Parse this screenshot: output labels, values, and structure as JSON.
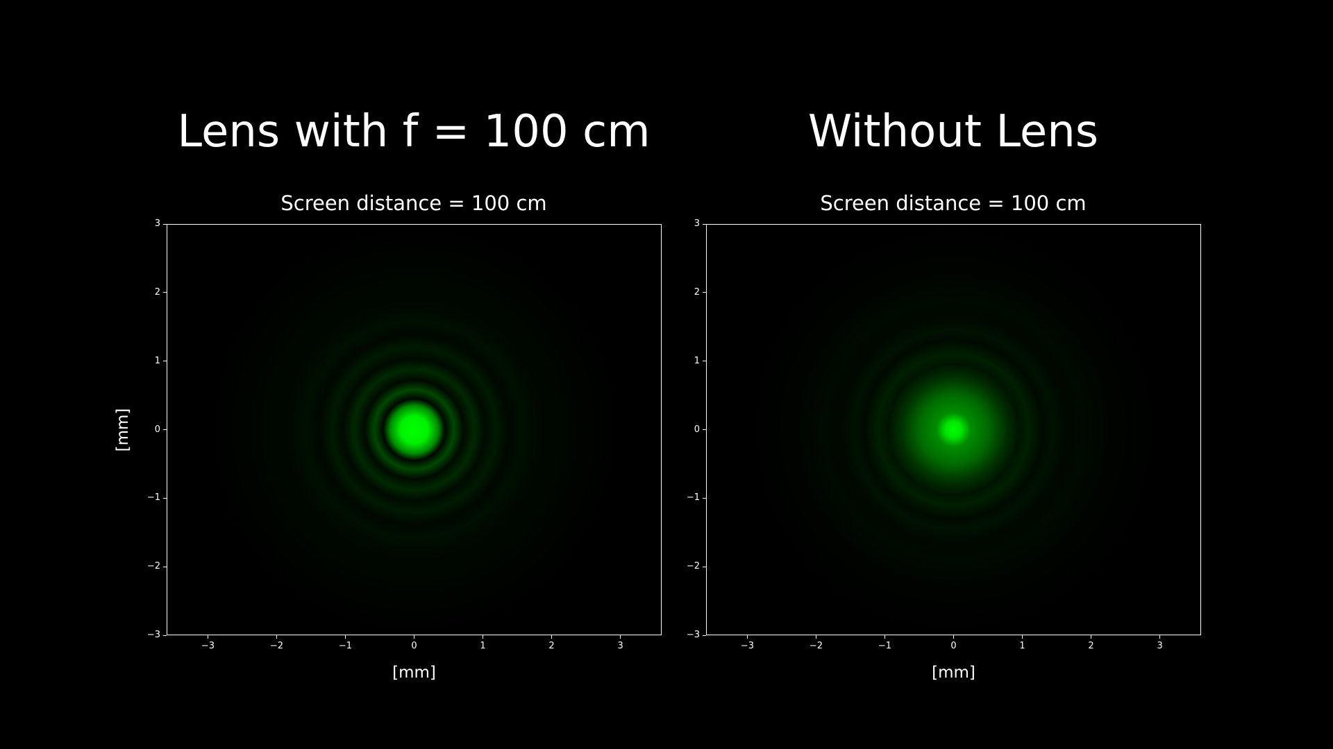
{
  "chart_data": [
    {
      "type": "heatmap",
      "suptitle": "Lens with f = 100 cm",
      "title": "Screen distance = 100 cm",
      "xlabel": "[mm]",
      "ylabel": "[mm]",
      "xlim": [
        -3.6,
        3.6
      ],
      "ylim": [
        -3,
        3
      ],
      "xticks": [
        -3,
        -2,
        -1,
        0,
        1,
        2,
        3
      ],
      "yticks": [
        -3,
        -2,
        -1,
        0,
        1,
        2,
        3
      ],
      "xtick_labels": [
        "−3",
        "−2",
        "−1",
        "0",
        "1",
        "2",
        "3"
      ],
      "ytick_labels": [
        "−3",
        "−2",
        "−1",
        "0",
        "1",
        "2",
        "3"
      ],
      "colormap": "black-to-green",
      "color": "#00ff00",
      "pattern": "concentric diffraction rings (Airy-like)",
      "rings": [
        {
          "radius_mm": 0.0,
          "intensity": 1.0
        },
        {
          "radius_mm": 0.2,
          "intensity": 0.95
        },
        {
          "radius_mm": 0.35,
          "intensity": 0.55
        },
        {
          "radius_mm": 0.45,
          "intensity": 0.03
        },
        {
          "radius_mm": 0.58,
          "intensity": 0.28
        },
        {
          "radius_mm": 0.72,
          "intensity": 0.04
        },
        {
          "radius_mm": 0.88,
          "intensity": 0.16
        },
        {
          "radius_mm": 1.03,
          "intensity": 0.04
        },
        {
          "radius_mm": 1.2,
          "intensity": 0.1
        },
        {
          "radius_mm": 1.38,
          "intensity": 0.03
        },
        {
          "radius_mm": 1.58,
          "intensity": 0.06
        },
        {
          "radius_mm": 1.85,
          "intensity": 0.03
        },
        {
          "radius_mm": 2.3,
          "intensity": 0.02
        },
        {
          "radius_mm": 3.0,
          "intensity": 0.0
        }
      ]
    },
    {
      "type": "heatmap",
      "suptitle": "Without Lens",
      "title": "Screen distance = 100 cm",
      "xlabel": "[mm]",
      "ylabel": "",
      "xlim": [
        -3.6,
        3.6
      ],
      "ylim": [
        -3,
        3
      ],
      "xticks": [
        -3,
        -2,
        -1,
        0,
        1,
        2,
        3
      ],
      "yticks": [
        -3,
        -2,
        -1,
        0,
        1,
        2,
        3
      ],
      "xtick_labels": [
        "−3",
        "−2",
        "−1",
        "0",
        "1",
        "2",
        "3"
      ],
      "ytick_labels": [
        "−3",
        "−2",
        "−1",
        "0",
        "1",
        "2",
        "3"
      ],
      "colormap": "black-to-green",
      "color": "#00ff00",
      "pattern": "broad central spot with faint concentric rings",
      "rings": [
        {
          "radius_mm": 0.0,
          "intensity": 1.0
        },
        {
          "radius_mm": 0.12,
          "intensity": 0.9
        },
        {
          "radius_mm": 0.25,
          "intensity": 0.55
        },
        {
          "radius_mm": 0.5,
          "intensity": 0.42
        },
        {
          "radius_mm": 0.75,
          "intensity": 0.2
        },
        {
          "radius_mm": 0.95,
          "intensity": 0.08
        },
        {
          "radius_mm": 1.1,
          "intensity": 0.12
        },
        {
          "radius_mm": 1.3,
          "intensity": 0.04
        },
        {
          "radius_mm": 1.45,
          "intensity": 0.07
        },
        {
          "radius_mm": 1.65,
          "intensity": 0.03
        },
        {
          "radius_mm": 1.9,
          "intensity": 0.04
        },
        {
          "radius_mm": 2.3,
          "intensity": 0.015
        },
        {
          "radius_mm": 3.0,
          "intensity": 0.0
        }
      ]
    }
  ]
}
